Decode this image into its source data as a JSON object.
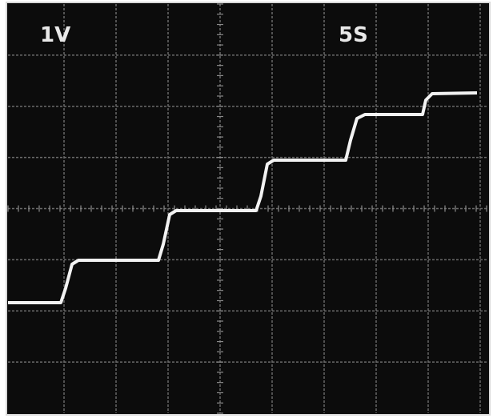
{
  "screen": {
    "volts_per_div": "1V",
    "time_per_div": "5S"
  }
}
